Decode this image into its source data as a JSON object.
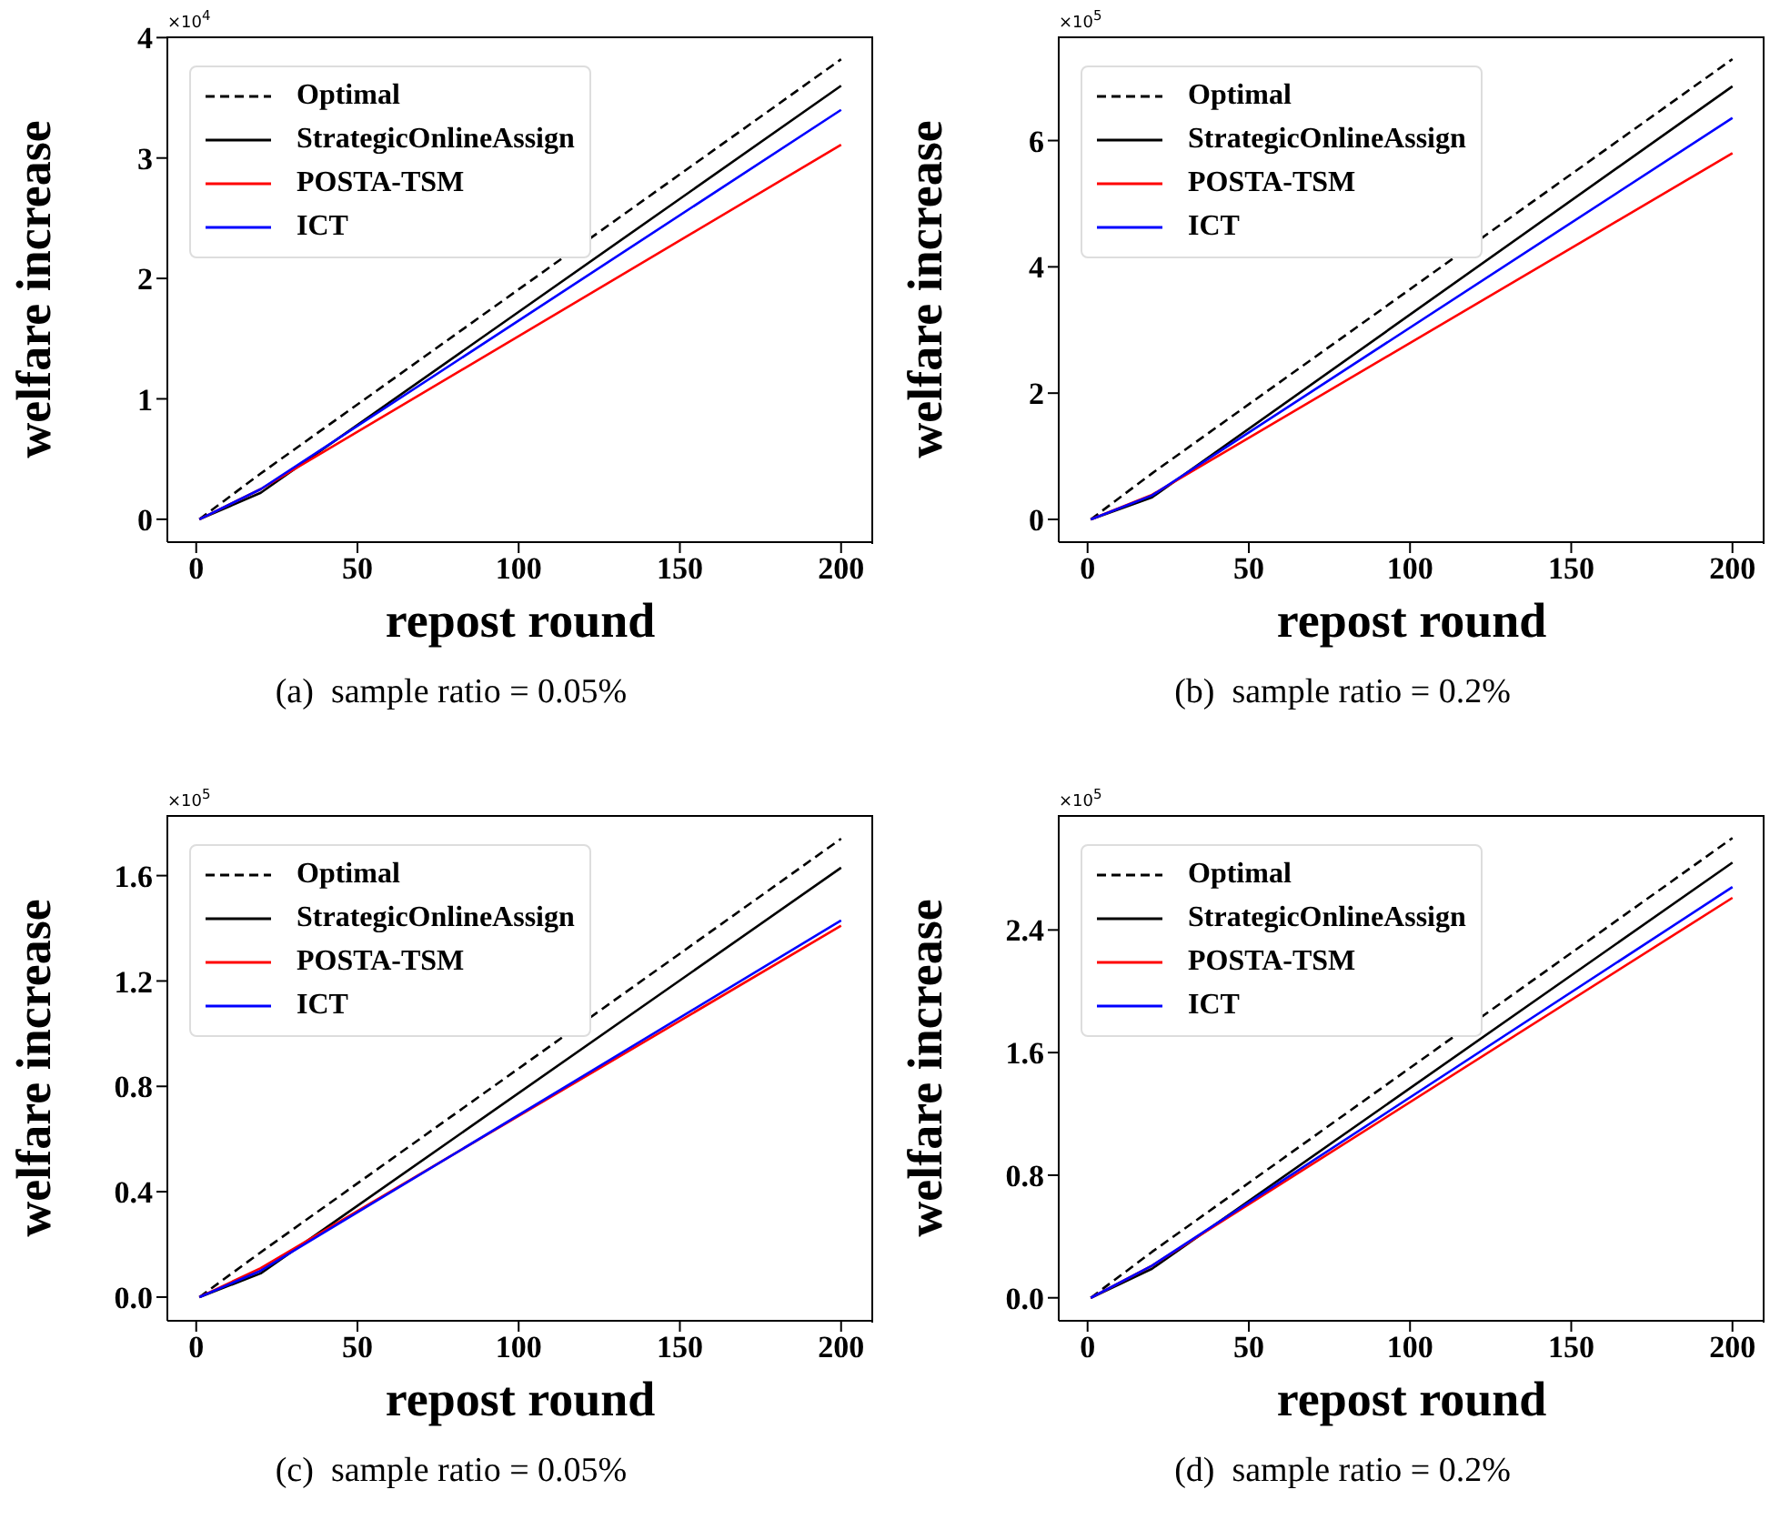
{
  "chart_data": [
    {
      "type": "line",
      "xlabel": "repost round",
      "ylabel": "welfare increase",
      "x": [
        1,
        20,
        200
      ],
      "xlim": [
        -8.95,
        209.95
      ],
      "xticks": [
        0,
        50,
        100,
        150,
        200
      ],
      "ylim": [
        -0.19,
        4.01
      ],
      "yticks": [
        0,
        1,
        2,
        3,
        4
      ],
      "legend": "top left",
      "grid": false,
      "marker": "none",
      "annotations": [
        "×10$^{4}$",
        "(a)  sample ratio = 0.05%"
      ],
      "series": [
        {
          "name": "Optimal",
          "color": "#000000",
          "line_style": "dashed",
          "values": [
            0,
            0.38,
            3.82
          ]
        },
        {
          "name": "StrategicOnlineAssign",
          "color": "#000000",
          "line_style": "solid",
          "values": [
            0,
            0.22,
            3.6
          ]
        },
        {
          "name": "POSTA-TSM",
          "color": "#ff0000",
          "line_style": "solid",
          "values": [
            0,
            0.25,
            3.11
          ]
        },
        {
          "name": "ICT",
          "color": "#0000ff",
          "line_style": "solid",
          "values": [
            0,
            0.25,
            3.4
          ]
        }
      ]
    },
    {
      "type": "line",
      "xlabel": "repost round",
      "ylabel": "welfare increase",
      "x": [
        1,
        20,
        200
      ],
      "xlim": [
        -8.95,
        209.95
      ],
      "xticks": [
        0,
        50,
        100,
        150,
        200
      ],
      "ylim": [
        -0.36,
        7.65
      ],
      "yticks": [
        0,
        2,
        4,
        6
      ],
      "legend": "top left",
      "grid": false,
      "marker": "none",
      "annotations": [
        "×10$^{5}$",
        "(b)  sample ratio = 0.2%"
      ],
      "series": [
        {
          "name": "Optimal",
          "color": "#000000",
          "line_style": "dashed",
          "values": [
            0,
            0.73,
            7.29
          ]
        },
        {
          "name": "StrategicOnlineAssign",
          "color": "#000000",
          "line_style": "solid",
          "values": [
            0,
            0.35,
            6.86
          ]
        },
        {
          "name": "POSTA-TSM",
          "color": "#ff0000",
          "line_style": "solid",
          "values": [
            0,
            0.39,
            5.8
          ]
        },
        {
          "name": "ICT",
          "color": "#0000ff",
          "line_style": "solid",
          "values": [
            0,
            0.38,
            6.36
          ]
        }
      ]
    },
    {
      "type": "line",
      "xlabel": "repost round",
      "ylabel": "welfare increase",
      "x": [
        1,
        20,
        200
      ],
      "xlim": [
        -8.95,
        209.95
      ],
      "xticks": [
        0,
        50,
        100,
        150,
        200
      ],
      "ylim": [
        -0.09,
        1.83
      ],
      "yticks": [
        {
          "value": 0,
          "label": "0.0"
        },
        0.4,
        0.8,
        1.2,
        1.6
      ],
      "legend": "top left",
      "grid": false,
      "marker": "none",
      "annotations": [
        "×10$^{5}$",
        "(c)  sample ratio = 0.05%"
      ],
      "series": [
        {
          "name": "Optimal",
          "color": "#000000",
          "line_style": "dashed",
          "values": [
            0,
            0.17,
            1.74
          ]
        },
        {
          "name": "StrategicOnlineAssign",
          "color": "#000000",
          "line_style": "solid",
          "values": [
            0,
            0.09,
            1.63
          ]
        },
        {
          "name": "POSTA-TSM",
          "color": "#ff0000",
          "line_style": "solid",
          "values": [
            0,
            0.11,
            1.41
          ]
        },
        {
          "name": "ICT",
          "color": "#0000ff",
          "line_style": "solid",
          "values": [
            0,
            0.1,
            1.43
          ]
        }
      ]
    },
    {
      "type": "line",
      "xlabel": "repost round",
      "ylabel": "welfare increase",
      "x": [
        1,
        20,
        200
      ],
      "xlim": [
        -8.95,
        209.95
      ],
      "xticks": [
        0,
        50,
        100,
        150,
        200
      ],
      "ylim": [
        -0.15,
        3.15
      ],
      "yticks": [
        {
          "value": 0,
          "label": "0.0"
        },
        0.8,
        1.6,
        2.4
      ],
      "legend": "top left",
      "grid": false,
      "marker": "none",
      "annotations": [
        "×10$^{5}$",
        "(d)  sample ratio = 0.2%"
      ],
      "series": [
        {
          "name": "Optimal",
          "color": "#000000",
          "line_style": "dashed",
          "values": [
            0,
            0.3,
            3.0
          ]
        },
        {
          "name": "StrategicOnlineAssign",
          "color": "#000000",
          "line_style": "solid",
          "values": [
            0,
            0.19,
            2.84
          ]
        },
        {
          "name": "POSTA-TSM",
          "color": "#ff0000",
          "line_style": "solid",
          "values": [
            0,
            0.21,
            2.61
          ]
        },
        {
          "name": "ICT",
          "color": "#0000ff",
          "line_style": "solid",
          "values": [
            0,
            0.21,
            2.68
          ]
        }
      ]
    }
  ]
}
